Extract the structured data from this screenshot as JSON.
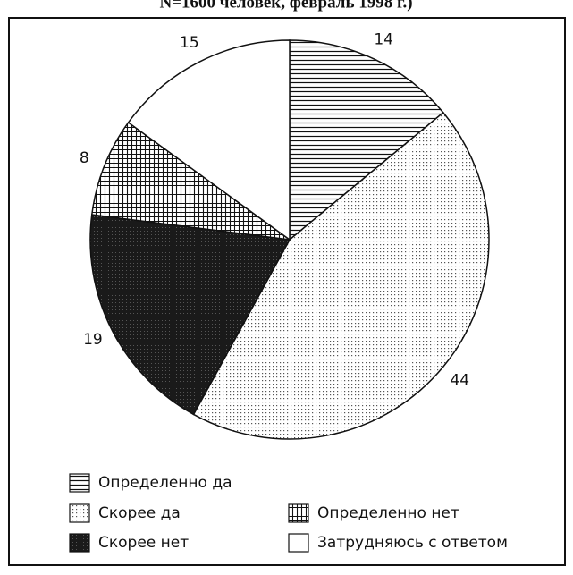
{
  "chart_data": {
    "type": "pie",
    "subtitle": "N=1600 человек, февраль 1998 г.)",
    "categories": [
      "Определенно да",
      "Скорее да",
      "Скорее нет",
      "Определенно нет",
      "Затрудняюсь с ответом"
    ],
    "values": [
      14,
      44,
      19,
      8,
      15
    ]
  }
}
